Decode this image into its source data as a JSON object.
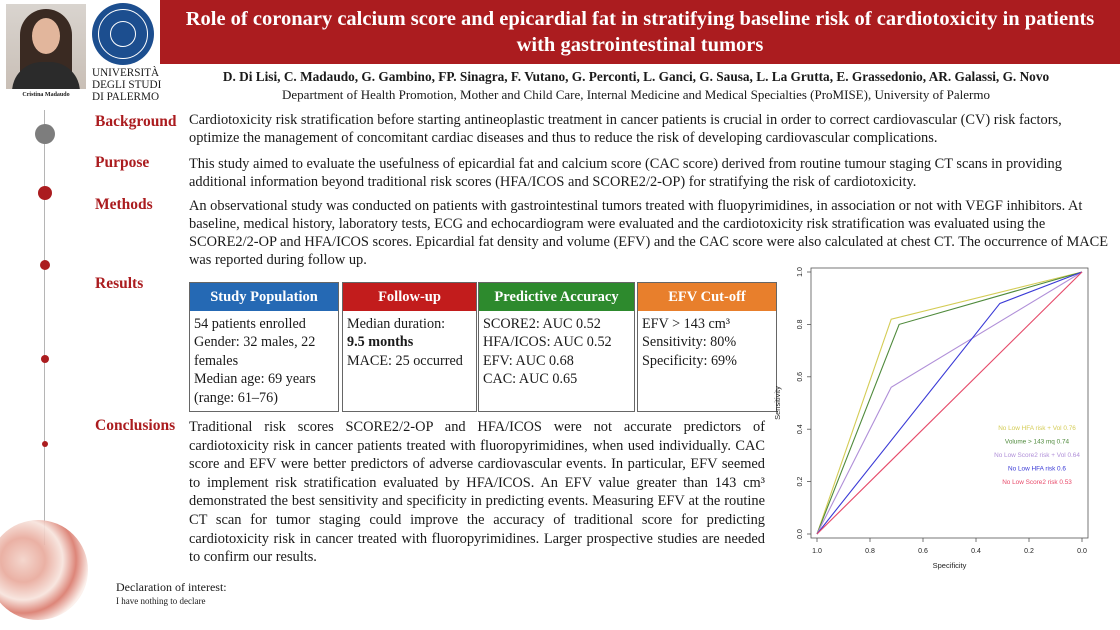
{
  "title": "Role of coronary calcium score and epicardial fat in stratifying baseline risk of cardiotoxicity in patients with gastrointestinal tumors",
  "presenter_caption": "Cristina Madaudo",
  "university": [
    "UNIVERSITÀ",
    "DEGLI STUDI",
    "DI PALERMO"
  ],
  "authors": "D. Di Lisi, C. Madaudo, G. Gambino, FP. Sinagra, F. Vutano, G. Perconti, L. Ganci, G. Sausa, L. La Grutta, E. Grassedonio, AR. Galassi, G. Novo",
  "affiliation": "Department of Health Promotion, Mother and Child Care, Internal Medicine and Medical Specialties (ProMISE), University of Palermo",
  "sections": {
    "background": {
      "label": "Background",
      "text": "Cardiotoxicity risk stratification before starting antineoplastic treatment in cancer patients is crucial in order to correct cardiovascular (CV) risk factors, optimize the management of concomitant cardiac diseases and thus to reduce the risk of developing cardiovascular complications."
    },
    "purpose": {
      "label": "Purpose",
      "text": "This study aimed to evaluate the usefulness of epicardial fat and calcium score (CAC score) derived from routine tumour staging CT scans in providing additional information beyond traditional risk scores (HFA/ICOS and SCORE2/2-OP) for stratifying the risk of cardiotoxicity."
    },
    "methods": {
      "label": "Methods",
      "text": "An observational study was conducted on patients with gastrointestinal tumors treated with fluopyrimidines, in association or not with VEGF inhibitors. At baseline, medical history, laboratory tests, ECG and echocardiogram were evaluated and the cardiotoxicity risk stratification was evaluated using the SCORE2/2-OP and HFA/ICOS scores. Epicardial fat density and volume (EFV) and the CAC score were also calculated at chest CT. The occurrence of MACE was reported during follow up."
    },
    "results": {
      "label": "Results"
    },
    "conclusions": {
      "label": "Conclusions",
      "text": "Traditional risk scores SCORE2/2-OP and HFA/ICOS were not accurate predictors of cardiotoxicity risk in cancer patients treated with fluoropyrimidines, when used individually. CAC score and EFV were better predictors of adverse cardiovascular events. In particular, EFV seemed to implement risk stratification evaluated by HFA/ICOS. An EFV value greater than 143 cm³ demonstrated the best sensitivity and specificity in predicting events. Measuring EFV at the routine CT scan for tumor staging could improve the accuracy of traditional score for predicting cardiotoxicity risk in cancer treated with fluoropyrimidines. Larger prospective studies are needed to confirm our results."
    }
  },
  "results_boxes": {
    "study_population": {
      "title": "Study Population",
      "color": "#2569b4",
      "lines": [
        "54 patients enrolled",
        "Gender: 32 males, 22 females",
        "Median age: 69 years (range: 61–76)"
      ]
    },
    "follow_up": {
      "title": "Follow-up",
      "color": "#c21c1c",
      "line1": "Median duration:",
      "duration": "9.5 months",
      "line3": "MACE: 25 occurred"
    },
    "predictive_accuracy": {
      "title": "Predictive Accuracy",
      "color": "#2d8a2d",
      "lines": [
        "SCORE2: AUC 0.52",
        "HFA/ICOS: AUC 0.52",
        "EFV: AUC 0.68",
        "CAC: AUC 0.65"
      ]
    },
    "efv_cutoff": {
      "title": "EFV Cut-off",
      "color": "#e87f2c",
      "lines": [
        "EFV > 143 cm³",
        "Sensitivity: 80%",
        "Specificity: 69%"
      ]
    }
  },
  "declaration": {
    "title": "Declaration of interest:",
    "text": "I have nothing to declare"
  },
  "chart_data": {
    "type": "line",
    "title": "",
    "xlabel": "Specificity",
    "ylabel": "Sensitivity",
    "xlim": [
      1.0,
      0.0
    ],
    "ylim": [
      0.0,
      1.0
    ],
    "x_ticks": [
      "1.0",
      "0.8",
      "0.6",
      "0.4",
      "0.2",
      "0.0"
    ],
    "y_ticks": [
      "0.0",
      "0.2",
      "0.4",
      "0.6",
      "0.8",
      "1.0"
    ],
    "legend_position": "bottom-right",
    "series": [
      {
        "name": "No Low HFA risk + Vol 0.76",
        "color": "#d4cc55",
        "x": [
          1.0,
          0.72,
          0.0
        ],
        "y": [
          0.0,
          0.82,
          1.0
        ]
      },
      {
        "name": "Volume > 143 mq 0.74",
        "color": "#4f8a3c",
        "x": [
          1.0,
          0.69,
          0.0
        ],
        "y": [
          0.0,
          0.8,
          1.0
        ]
      },
      {
        "name": "No Low Score2 risk + Vol 0.64",
        "color": "#b08fd8",
        "x": [
          1.0,
          0.72,
          0.0
        ],
        "y": [
          0.0,
          0.56,
          1.0
        ]
      },
      {
        "name": "No Low HFA risk 0.6",
        "color": "#3a3ad6",
        "x": [
          1.0,
          0.31,
          0.0
        ],
        "y": [
          0.0,
          0.88,
          1.0
        ]
      },
      {
        "name": "No Low Score2 risk 0.53",
        "color": "#e84a6a",
        "x": [
          1.0,
          0.0
        ],
        "y": [
          0.0,
          1.0
        ]
      }
    ]
  }
}
